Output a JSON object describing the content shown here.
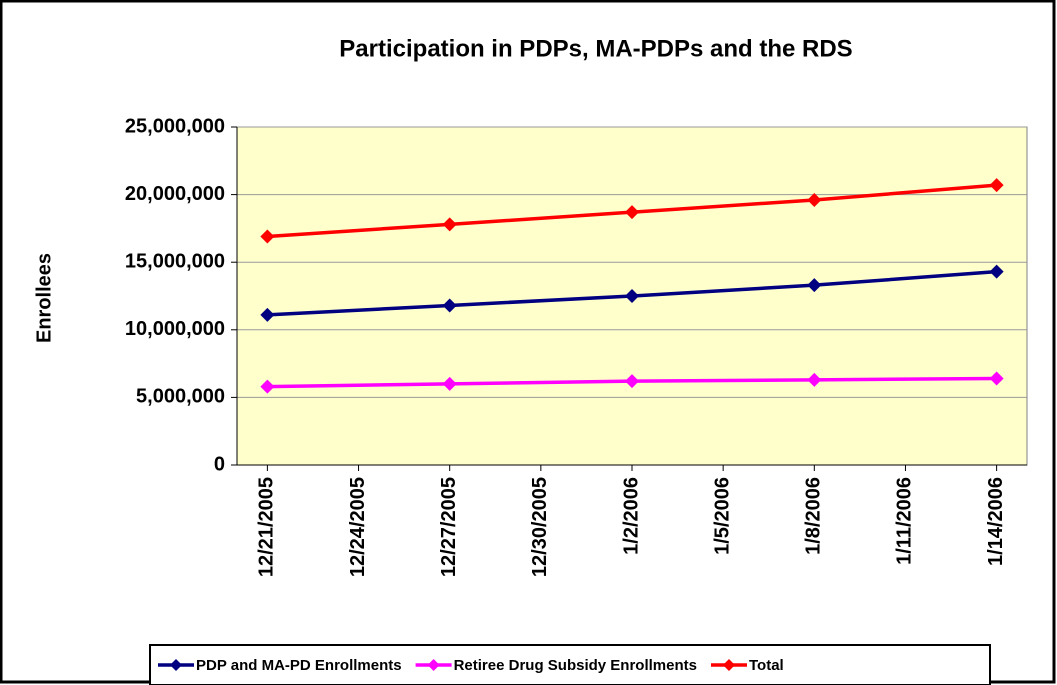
{
  "chart_data": {
    "type": "line",
    "title": "Participation in PDPs, MA-PDPs and the RDS",
    "y_label": "Enrollees",
    "x": [
      "12/21/2005",
      "12/27/2005",
      "1/2/2006",
      "1/8/2006",
      "1/14/2006"
    ],
    "xlim": [
      "12/20/2005",
      "1/15/2006"
    ],
    "xticks": [
      "12/21/2005",
      "12/24/2005",
      "12/27/2005",
      "12/30/2005",
      "1/2/2006",
      "1/5/2006",
      "1/8/2006",
      "1/11/2006",
      "1/14/2006"
    ],
    "ylim": [
      0,
      25000000
    ],
    "yticks": [
      0,
      {
        "value": 5000000,
        "label": "5,000,000"
      },
      {
        "value": 10000000,
        "label": "10,000,000"
      },
      {
        "value": 15000000,
        "label": "15,000,000"
      },
      {
        "value": 20000000,
        "label": "20,000,000"
      },
      {
        "value": 25000000,
        "label": "25,000,000"
      }
    ],
    "grid": true,
    "legend": "bottom",
    "series": [
      {
        "name": "PDP and MA-PD Enrollments",
        "color": "#000080",
        "values": [
          11100000,
          11800000,
          12500000,
          13300000,
          14300000
        ]
      },
      {
        "name": "Retiree Drug Subsidy Enrollments",
        "color": "#ff00ff",
        "values": [
          5800000,
          6000000,
          6200000,
          6300000,
          6400000
        ]
      },
      {
        "name": "Total",
        "color": "#ff0000",
        "values": [
          16900000,
          17800000,
          18700000,
          19600000,
          20700000
        ]
      }
    ]
  }
}
